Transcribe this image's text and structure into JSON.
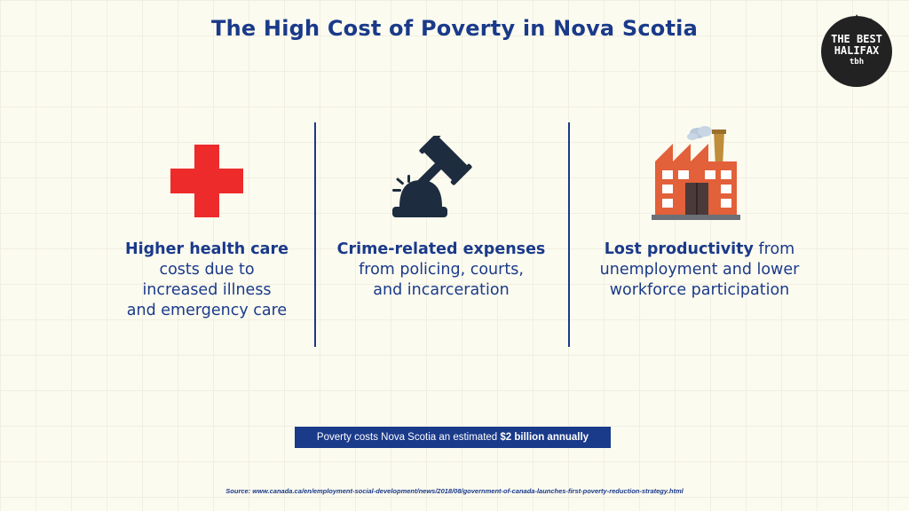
{
  "title": "The High Cost of Poverty in Nova Scotia",
  "badge": {
    "line1": "THE BEST",
    "line2": "HALIFAX",
    "mark": "tbh"
  },
  "columns": [
    {
      "icon": "red-cross-icon",
      "lead": "Higher health care",
      "rest_lines": [
        "costs due to",
        "increased illness",
        "and emergency care"
      ]
    },
    {
      "icon": "gavel-icon",
      "lead": "Crime-related expenses",
      "rest_lines": [
        "from policing, courts,",
        "and incarceration"
      ]
    },
    {
      "icon": "factory-icon",
      "lead": "Lost productivity",
      "lead_suffix": " from",
      "rest_lines": [
        "unemployment and lower",
        "workforce participation"
      ]
    }
  ],
  "banner": {
    "prefix": "Poverty costs Nova Scotia an estimated ",
    "highlight": "$2 billion annually"
  },
  "source": "Source: www.canada.ca/en/employment-social-development/news/2018/08/government-of-canada-launches-first-poverty-reduction-strategy.html",
  "colors": {
    "navy": "#1a3a8a",
    "cross_red": "#ee2b2b",
    "gavel": "#1d2c3e",
    "factory_brick": "#e2603a",
    "badge_black": "#222222",
    "background": "#fcfbf0"
  }
}
